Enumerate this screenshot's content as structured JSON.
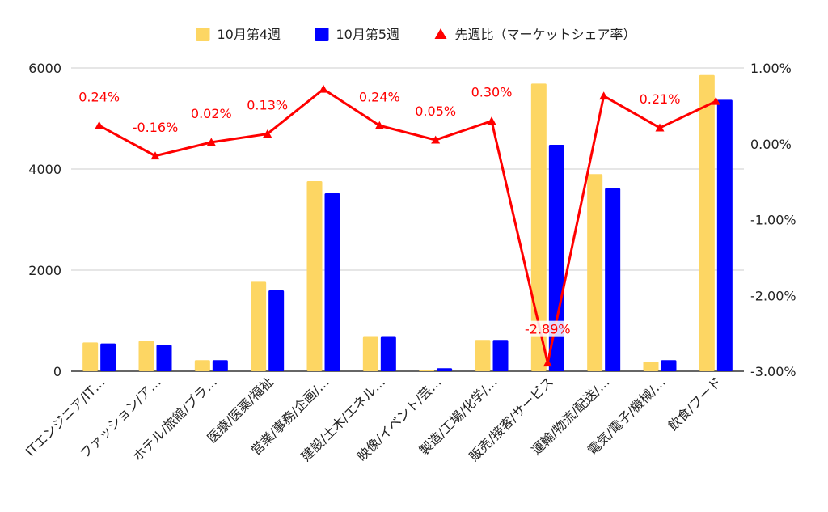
{
  "chart_data": {
    "type": "bar",
    "title": "",
    "xlabel": "",
    "ylabel": "",
    "categories": [
      "ITエンジニア/IT…",
      "ファッション/ア…",
      "ホテル/旅館/ブラ…",
      "医療/医薬/福祉",
      "営業/事務/企画/…",
      "建設/土木/エネル…",
      "映像/イベント/芸…",
      "製造/工場/化学/…",
      "販売/接客/サービス",
      "運輸/物流/配送/…",
      "電気/電子/機械/…",
      "飲食/フード"
    ],
    "series": [
      {
        "name": "10月第4週",
        "type": "bar",
        "axis": "left",
        "color": "#fdd663",
        "values": [
          570,
          600,
          220,
          1770,
          3760,
          680,
          30,
          620,
          5690,
          3900,
          190,
          5860
        ]
      },
      {
        "name": "10月第5週",
        "type": "bar",
        "axis": "left",
        "color": "#0000ff",
        "values": [
          550,
          520,
          220,
          1600,
          3520,
          680,
          60,
          620,
          4480,
          3620,
          220,
          5370
        ]
      },
      {
        "name": "先週比（マーケットシェア率）",
        "type": "line",
        "axis": "right",
        "color": "#ff0000",
        "values": [
          0.24,
          -0.16,
          0.02,
          0.13,
          0.72,
          0.24,
          0.05,
          0.3,
          -2.89,
          0.63,
          0.21,
          0.56
        ],
        "labels": [
          "0.24%",
          "-0.16%",
          "0.02%",
          "0.13%",
          "",
          "0.24%",
          "0.05%",
          "0.30%",
          "-2.89%",
          "",
          "0.21%",
          ""
        ]
      }
    ],
    "y_left": {
      "ylim": [
        0,
        6000
      ],
      "ticks": [
        "0",
        "2000",
        "4000",
        "6000"
      ]
    },
    "y_right": {
      "ylim": [
        -3.0,
        1.0
      ],
      "ticks": [
        "-3.00%",
        "-2.00%",
        "-1.00%",
        "0.00%",
        "1.00%"
      ]
    },
    "grid": true,
    "legend_position": "top"
  }
}
